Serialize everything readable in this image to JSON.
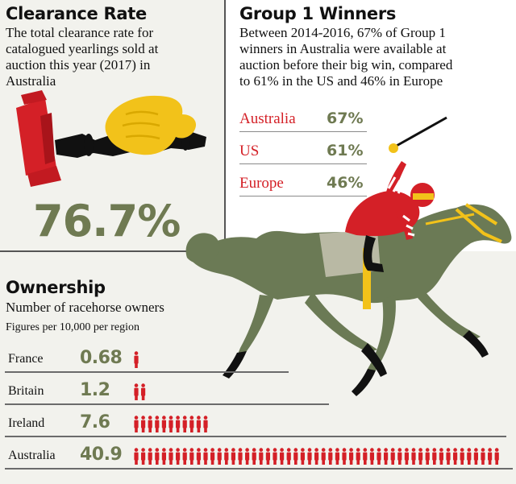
{
  "clearance": {
    "title": "Clearance Rate",
    "lines": [
      "The total clearance rate for",
      "catalogued yearlings sold at",
      "auction this year (2017) in",
      "Australia"
    ],
    "value": "76.7%"
  },
  "group1": {
    "title": "Group 1 Winners",
    "lines": [
      "Between 2014-2016, 67% of Group 1",
      "winners in Australia were available at",
      "auction before their big win, compared",
      "to 61% in the US and 46% in Europe"
    ]
  },
  "ownership": {
    "title": "Ownership",
    "subtitle": "Number of racehorse owners",
    "note": "Figures per 10,000 per region"
  },
  "colors": {
    "green_value": "#6f7a52",
    "red": "#d42027",
    "panel": "#f2f2ed",
    "horse": "#6b7a55",
    "gavel_hand": "#f2c21a"
  },
  "icons": [
    "gavel-icon",
    "hand-icon",
    "horse-jockey-icon",
    "person-icon"
  ],
  "chart_data": [
    {
      "type": "table",
      "title": "Group 1 Winners",
      "categories": [
        "Australia",
        "US",
        "Europe"
      ],
      "values": [
        67,
        61,
        46
      ],
      "labels": [
        "67%",
        "61%",
        "46%"
      ]
    },
    {
      "type": "bar",
      "title": "Ownership",
      "subtitle": "Number of racehorse owners",
      "note": "Figures per 10,000 per region",
      "categories": [
        "France",
        "Britain",
        "Ireland",
        "Australia"
      ],
      "values": [
        0.68,
        1.2,
        7.6,
        40.9
      ],
      "labels": [
        "0.68",
        "1.2",
        "7.6",
        "40.9"
      ],
      "icon_counts": [
        1,
        2,
        11,
        53
      ]
    }
  ]
}
